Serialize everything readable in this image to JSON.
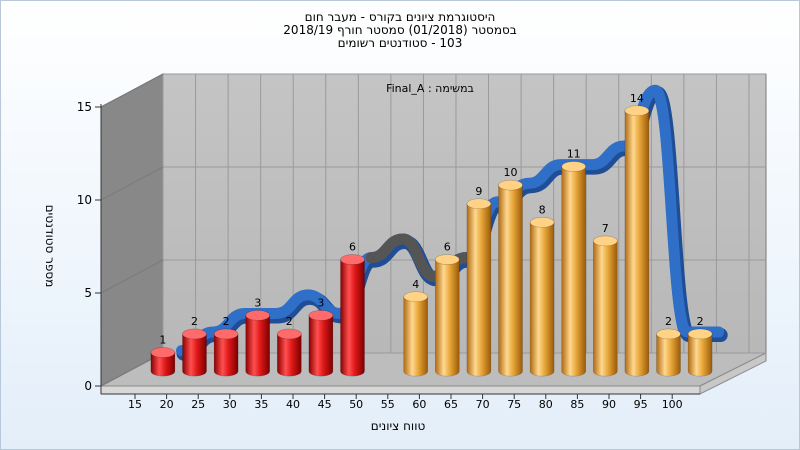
{
  "title_lines": [
    "היסטוגרמת ציונים בקורס - מעבר חום",
    "בסמסטר (01/2018) סמסטר חורף 2018/19",
    "103 - סטודנטים רשומים"
  ],
  "chart_data": {
    "type": "bar",
    "annotation": "Final_A : במשימה",
    "xlabel": "טווח ציונים",
    "ylabel": "מספר סטודנטים",
    "x_ticks": [
      "15",
      "20",
      "25",
      "30",
      "35",
      "40",
      "45",
      "50",
      "55",
      "60",
      "65",
      "70",
      "75",
      "80",
      "85",
      "90",
      "95",
      "100"
    ],
    "y_ticks": [
      0,
      5,
      10,
      15
    ],
    "ylim": [
      0,
      15
    ],
    "grid": true,
    "series": [
      {
        "color": "#e02020",
        "bins": [
          "15",
          "20",
          "25",
          "30",
          "35",
          "40",
          "45"
        ],
        "values": [
          1,
          2,
          2,
          3,
          2,
          3,
          6
        ]
      },
      {
        "color": "#e8a83a",
        "bins": [
          "55",
          "60",
          "65",
          "70",
          "75",
          "80",
          "85",
          "90",
          "95",
          "100"
        ],
        "values": [
          4,
          6,
          9,
          10,
          8,
          11,
          7,
          14,
          2,
          2
        ]
      }
    ],
    "trend_line": {
      "color": "#2f6fc8",
      "shadow_color": "#555555",
      "values": [
        1,
        2,
        3,
        3,
        4,
        3,
        6,
        7,
        5,
        6,
        9,
        10,
        11,
        11,
        12,
        15,
        2,
        2
      ]
    }
  }
}
